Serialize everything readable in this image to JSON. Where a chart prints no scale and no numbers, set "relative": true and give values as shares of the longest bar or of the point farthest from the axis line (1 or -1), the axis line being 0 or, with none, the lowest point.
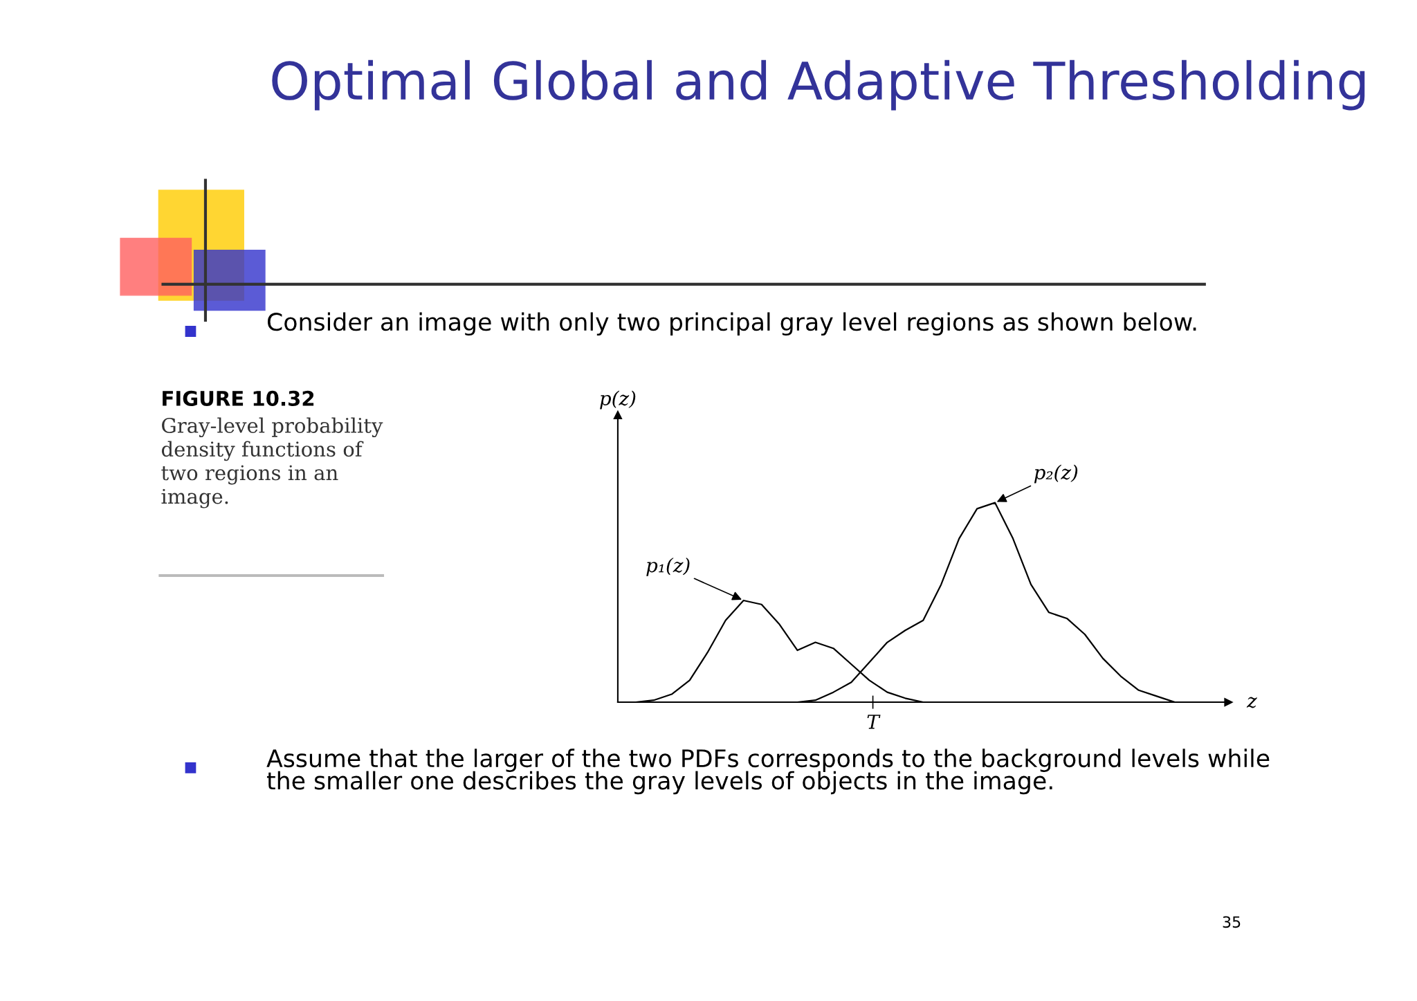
{
  "chart_data": {
    "type": "line",
    "relative": true,
    "title": "Optimal Global and Adaptive Thresholding",
    "xlabel": "z",
    "categories": [
      null,
      null,
      null,
      null,
      null,
      null,
      null,
      null,
      null,
      null,
      null,
      null,
      null,
      null,
      null,
      null,
      null,
      null,
      null,
      null,
      null,
      null,
      null,
      null,
      null,
      null,
      null,
      null,
      null,
      null,
      null,
      null,
      null,
      null,
      null
    ],
    "series": [
      {
        "name": "p₁(z)",
        "color": "#000000",
        "values": [
          null,
          0,
          0.01,
          0.04,
          0.11,
          0.25,
          0.41,
          0.51,
          0.49,
          0.39,
          0.26,
          0.3,
          0.27,
          0.19,
          0.11,
          0.05,
          0.02,
          0,
          null,
          null,
          null,
          null,
          null,
          null,
          null,
          null,
          null,
          null,
          null,
          null,
          null,
          null,
          null,
          null,
          null
        ]
      },
      {
        "name": "p₂(z)",
        "color": "#000000",
        "values": [
          null,
          null,
          null,
          null,
          null,
          null,
          null,
          null,
          null,
          null,
          0,
          0.01,
          0.05,
          0.1,
          0.2,
          0.3,
          0.36,
          0.41,
          0.59,
          0.82,
          0.97,
          1,
          0.82,
          0.59,
          0.45,
          0.42,
          0.34,
          0.22,
          0.13,
          0.06,
          0.03,
          0,
          null,
          null,
          null
        ]
      }
    ],
    "legend": false,
    "marker": "none",
    "line_style": "solid",
    "annotations": [
      "Consider an image with only two principal gray level regions as shown below.",
      "FIGURE 10.32",
      "Gray-level probability density functions of two regions in an image.",
      "Assume that the larger of the two PDFs corresponds to the background levels while the smaller one describes the gray levels of objects in the image.",
      "35",
      "p(z)",
      "T"
    ]
  }
}
